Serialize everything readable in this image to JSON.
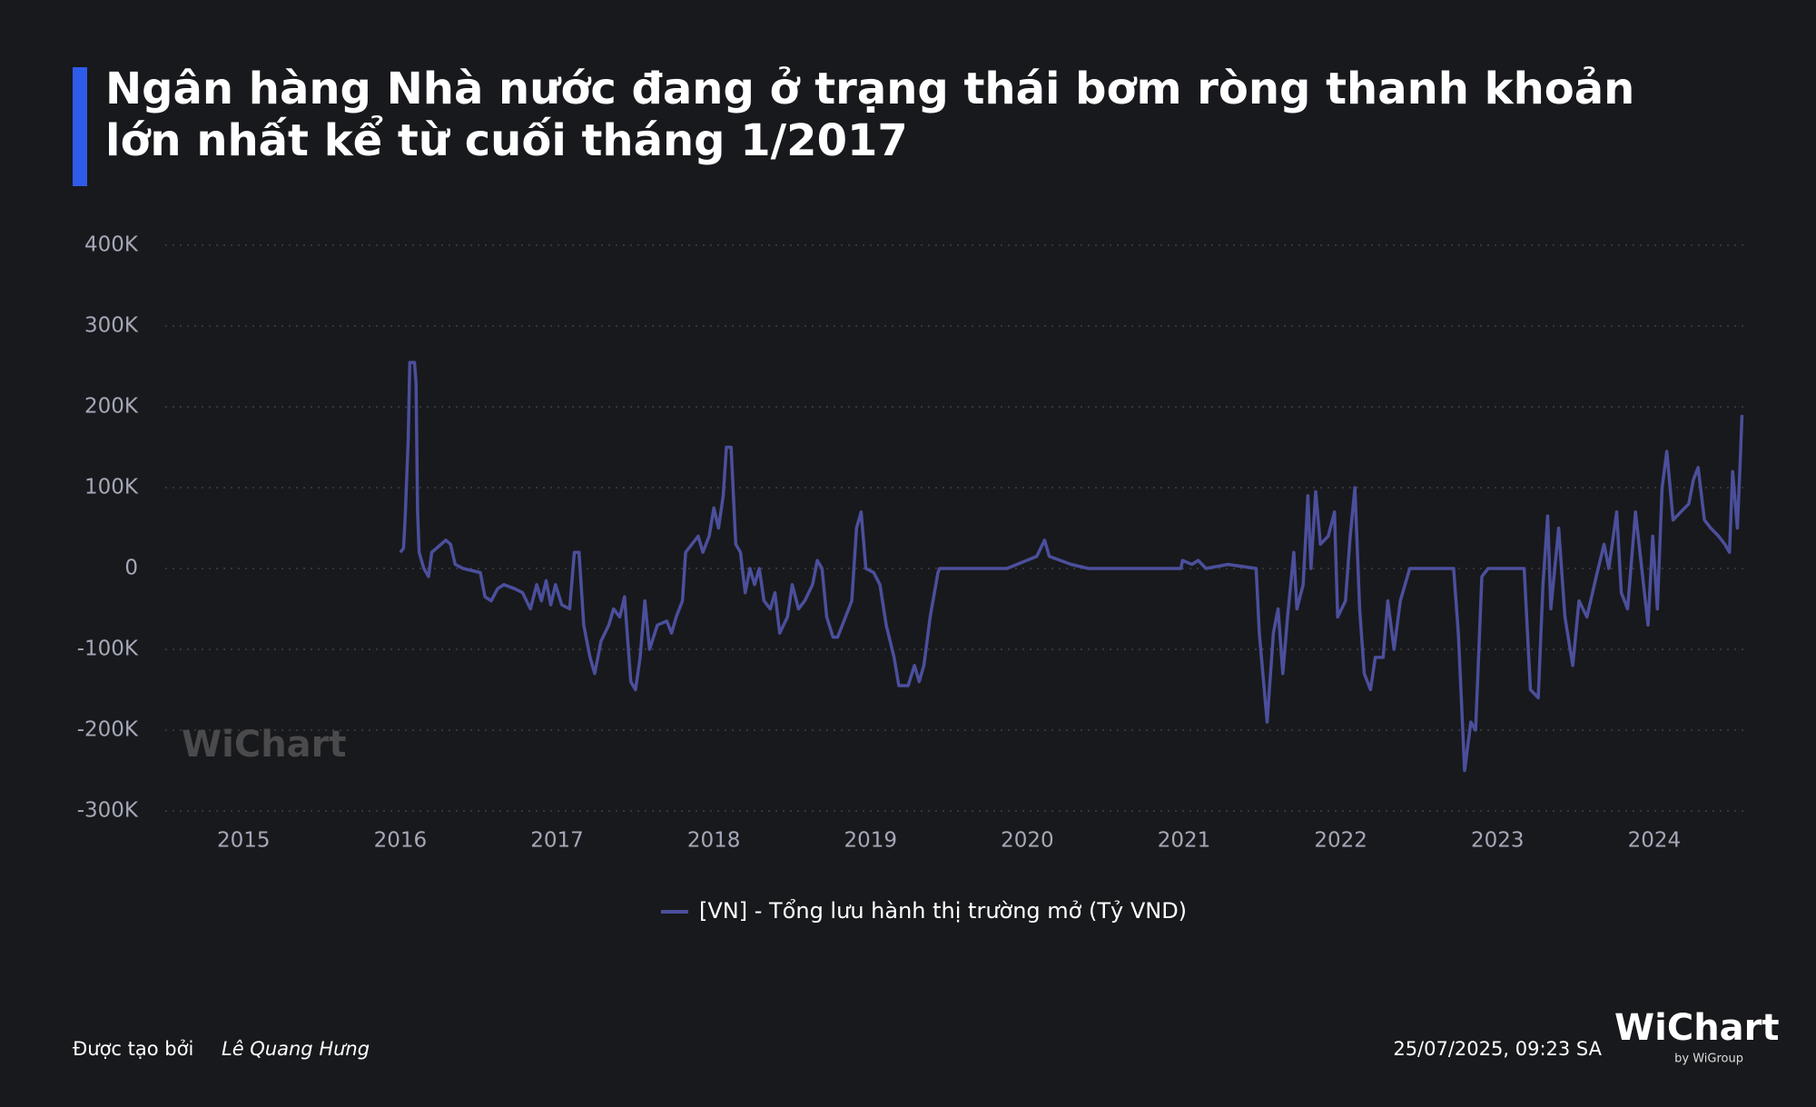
{
  "chart_data": {
    "type": "line",
    "title": "Ngân hàng Nhà nước đang ở trạng thái bơm ròng thanh khoản lớn nhất kể từ cuối tháng 1/2017",
    "x": [
      2016.0,
      2016.02,
      2016.03,
      2016.05,
      2016.06,
      2016.09,
      2016.1,
      2016.11,
      2016.12,
      2016.15,
      2016.18,
      2016.2,
      2016.23,
      2016.26,
      2016.29,
      2016.32,
      2016.35,
      2016.4,
      2016.51,
      2016.54,
      2016.58,
      2016.62,
      2016.66,
      2016.73,
      2016.78,
      2016.83,
      2016.87,
      2016.9,
      2016.93,
      2016.96,
      2016.99,
      2017.03,
      2017.08,
      2017.11,
      2017.14,
      2017.17,
      2017.21,
      2017.24,
      2017.28,
      2017.33,
      2017.36,
      2017.4,
      2017.43,
      2017.47,
      2017.5,
      2017.53,
      2017.56,
      2017.59,
      2017.64,
      2017.7,
      2017.73,
      2017.76,
      2017.8,
      2017.82,
      2017.86,
      2017.9,
      2017.93,
      2017.97,
      2018.0,
      2018.03,
      2018.06,
      2018.08,
      2018.11,
      2018.14,
      2018.17,
      2018.2,
      2018.23,
      2018.26,
      2018.29,
      2018.32,
      2018.36,
      2018.39,
      2018.42,
      2018.47,
      2018.5,
      2018.54,
      2018.58,
      2018.63,
      2018.66,
      2018.69,
      2018.72,
      2018.76,
      2018.79,
      2018.84,
      2018.88,
      2018.91,
      2018.94,
      2018.97,
      2019.02,
      2019.06,
      2019.1,
      2019.15,
      2019.18,
      2019.24,
      2019.28,
      2019.31,
      2019.34,
      2019.38,
      2019.43,
      2019.44,
      2019.87,
      2020.06,
      2020.11,
      2020.14,
      2020.28,
      2020.39,
      2020.98,
      2020.99,
      2021.05,
      2021.09,
      2021.14,
      2021.28,
      2021.46,
      2021.48,
      2021.53,
      2021.57,
      2021.6,
      2021.63,
      2021.66,
      2021.7,
      2021.72,
      2021.76,
      2021.79,
      2021.81,
      2021.84,
      2021.87,
      2021.92,
      2021.96,
      2021.98,
      2022.03,
      2022.06,
      2022.09,
      2022.12,
      2022.15,
      2022.19,
      2022.22,
      2022.27,
      2022.3,
      2022.34,
      2022.38,
      2022.44,
      2022.72,
      2022.75,
      2022.79,
      2022.83,
      2022.86,
      2022.9,
      2022.94,
      2023.12,
      2023.17,
      2023.21,
      2023.26,
      2023.29,
      2023.32,
      2023.34,
      2023.39,
      2023.43,
      2023.48,
      2023.52,
      2023.57,
      2023.63,
      2023.68,
      2023.71,
      2023.76,
      2023.79,
      2023.83,
      2023.88,
      2023.92,
      2023.96,
      2023.99,
      2024.02,
      2024.05,
      2024.08,
      2024.12,
      2024.17,
      2024.22,
      2024.25,
      2024.28,
      2024.32,
      2024.36,
      2024.41,
      2024.45,
      2024.48,
      2024.5,
      2024.53,
      2024.55,
      2024.56
    ],
    "series": [
      {
        "name": "[VN] - Tổng lưu hành thị trường mở (Tỷ VND)",
        "color": "#4b4f9c",
        "values": [
          20000,
          25000,
          60000,
          160000,
          255000,
          255000,
          230000,
          70000,
          20000,
          0,
          -10000,
          20000,
          25000,
          30000,
          35000,
          30000,
          5000,
          0,
          -5000,
          -35000,
          -40000,
          -25000,
          -20000,
          -25000,
          -30000,
          -50000,
          -20000,
          -40000,
          -15000,
          -45000,
          -20000,
          -45000,
          -50000,
          20000,
          20000,
          -70000,
          -110000,
          -130000,
          -90000,
          -70000,
          -50000,
          -60000,
          -35000,
          -140000,
          -150000,
          -110000,
          -40000,
          -100000,
          -70000,
          -65000,
          -80000,
          -60000,
          -40000,
          20000,
          30000,
          40000,
          20000,
          40000,
          75000,
          50000,
          90000,
          150000,
          150000,
          30000,
          20000,
          -30000,
          0,
          -20000,
          0,
          -40000,
          -50000,
          -30000,
          -80000,
          -60000,
          -20000,
          -50000,
          -40000,
          -20000,
          10000,
          0,
          -60000,
          -85000,
          -85000,
          -60000,
          -40000,
          50000,
          70000,
          0,
          -5000,
          -20000,
          -70000,
          -110000,
          -145000,
          -145000,
          -120000,
          -140000,
          -120000,
          -60000,
          -5000,
          0,
          0,
          15000,
          35000,
          15000,
          5000,
          0,
          0,
          10000,
          5000,
          10000,
          0,
          5000,
          0,
          -80000,
          -190000,
          -80000,
          -50000,
          -130000,
          -60000,
          20000,
          -50000,
          -20000,
          90000,
          0,
          95000,
          30000,
          40000,
          70000,
          -60000,
          -40000,
          40000,
          100000,
          -50000,
          -130000,
          -150000,
          -110000,
          -110000,
          -40000,
          -100000,
          -40000,
          0,
          0,
          -80000,
          -250000,
          -190000,
          -200000,
          -10000,
          0,
          0,
          0,
          -150000,
          -160000,
          -20000,
          65000,
          -50000,
          50000,
          -60000,
          -120000,
          -40000,
          -60000,
          -10000,
          30000,
          0,
          70000,
          -30000,
          -50000,
          70000,
          0,
          -70000,
          40000,
          -50000,
          100000,
          145000,
          60000,
          70000,
          80000,
          110000,
          125000,
          60000,
          50000,
          40000,
          30000,
          20000,
          120000,
          50000,
          140000,
          190000
        ]
      }
    ],
    "xlim": [
      2014.5,
      2024.58
    ],
    "xticks": [
      2015,
      2016,
      2017,
      2018,
      2019,
      2020,
      2021,
      2022,
      2023,
      2024
    ],
    "ylim": [
      -300000,
      400000
    ],
    "yticks": [
      {
        "value": -300000,
        "label": "-300K"
      },
      {
        "value": -200000,
        "label": "-200K"
      },
      {
        "value": -100000,
        "label": "-100K"
      },
      0,
      {
        "value": 100000,
        "label": "100K"
      },
      {
        "value": 200000,
        "label": "200K"
      },
      {
        "value": 300000,
        "label": "300K"
      },
      {
        "value": 400000,
        "label": "400K"
      }
    ],
    "grid": true,
    "legend": "bottom"
  },
  "watermark": "WiChart",
  "footer": {
    "created_by": "Được tạo bởi",
    "author": "Lê Quang Hưng",
    "timestamp": "25/07/2025, 09:23 SA",
    "logo": "WiChart",
    "logo_sub": "by WiGroup"
  }
}
